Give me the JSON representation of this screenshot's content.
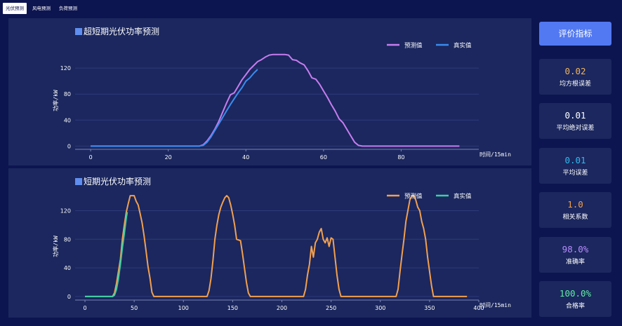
{
  "tabs": [
    {
      "label": "光伏预测",
      "active": true
    },
    {
      "label": "风电预测",
      "active": false
    },
    {
      "label": "负荷预测",
      "active": false
    }
  ],
  "charts": {
    "ultra_short": {
      "title": "超短期光伏功率预测",
      "xunit": "时间/15min",
      "yunit": "功率/kW",
      "legend": [
        "预测值",
        "真实值"
      ]
    },
    "short": {
      "title": "短期光伏功率预测",
      "xunit": "时间/15min",
      "yunit": "功率/kW",
      "legend": [
        "预测值",
        "真实值"
      ]
    }
  },
  "eval_button": "评价指标",
  "metrics": [
    {
      "value": "0.02",
      "label": "均方根误差",
      "color": "#f2b45a"
    },
    {
      "value": "0.01",
      "label": "平均绝对误差",
      "color": "#ffffff"
    },
    {
      "value": "0.01",
      "label": "平均误差",
      "color": "#34b8f0"
    },
    {
      "value": "1.0",
      "label": "相关系数",
      "color": "#f2a04a"
    },
    {
      "value": "98.0%",
      "label": "准确率",
      "color": "#b98cff"
    },
    {
      "value": "100.0%",
      "label": "合格率",
      "color": "#5ef0a0"
    }
  ],
  "chart_data": [
    {
      "type": "line",
      "title": "超短期光伏功率预测",
      "xlabel": "时间/15min",
      "ylabel": "功率/kW",
      "xlim": [
        -4,
        100
      ],
      "ylim": [
        -5,
        145
      ],
      "xticks": [
        0,
        20,
        40,
        60,
        80
      ],
      "yticks": [
        0,
        40,
        80,
        120
      ],
      "legend": "top-right",
      "grid": true,
      "series": [
        {
          "name": "预测值",
          "color": "#c77cf0",
          "points": [
            [
              0,
              0
            ],
            [
              28,
              0
            ],
            [
              29,
              2
            ],
            [
              30,
              8
            ],
            [
              31,
              16
            ],
            [
              32,
              26
            ],
            [
              33,
              38
            ],
            [
              34,
              52
            ],
            [
              35,
              66
            ],
            [
              36,
              79
            ],
            [
              37,
              82
            ],
            [
              38,
              92
            ],
            [
              39,
              102
            ],
            [
              40,
              110
            ],
            [
              41,
              118
            ],
            [
              42,
              124
            ],
            [
              43,
              130
            ],
            [
              44,
              133
            ],
            [
              45,
              137
            ],
            [
              46,
              140
            ],
            [
              47,
              141
            ],
            [
              48,
              141
            ],
            [
              49,
              141
            ],
            [
              50,
              141
            ],
            [
              51,
              140
            ],
            [
              52,
              133
            ],
            [
              53,
              132
            ],
            [
              54,
              128
            ],
            [
              55,
              125
            ],
            [
              56,
              116
            ],
            [
              57,
              105
            ],
            [
              58,
              103
            ],
            [
              59,
              95
            ],
            [
              60,
              85
            ],
            [
              61,
              75
            ],
            [
              62,
              64
            ],
            [
              63,
              54
            ],
            [
              64,
              42
            ],
            [
              65,
              36
            ],
            [
              66,
              26
            ],
            [
              67,
              16
            ],
            [
              68,
              6
            ],
            [
              69,
              1
            ],
            [
              70,
              0
            ],
            [
              95,
              0
            ]
          ]
        },
        {
          "name": "真实值",
          "color": "#3a8cf0",
          "points": [
            [
              0,
              0
            ],
            [
              28,
              0
            ],
            [
              29,
              1
            ],
            [
              30,
              6
            ],
            [
              31,
              14
            ],
            [
              32,
              24
            ],
            [
              33,
              34
            ],
            [
              34,
              44
            ],
            [
              35,
              54
            ],
            [
              36,
              64
            ],
            [
              37,
              73
            ],
            [
              38,
              82
            ],
            [
              39,
              90
            ],
            [
              40,
              100
            ],
            [
              41,
              105
            ],
            [
              42,
              112
            ],
            [
              43,
              118
            ]
          ]
        }
      ]
    },
    {
      "type": "line",
      "title": "短期光伏功率预测",
      "xlabel": "时间/15min",
      "ylabel": "功率/kW",
      "xlim": [
        -10,
        400
      ],
      "ylim": [
        -5,
        145
      ],
      "xticks": [
        0,
        50,
        100,
        150,
        200,
        250,
        300,
        350,
        400
      ],
      "yticks": [
        0,
        40,
        80,
        120
      ],
      "legend": "top-right",
      "grid": true,
      "series": [
        {
          "name": "预测值",
          "color": "#f2a050",
          "points": [
            [
              0,
              0
            ],
            [
              28,
              0
            ],
            [
              30,
              5
            ],
            [
              32,
              18
            ],
            [
              34,
              35
            ],
            [
              36,
              52
            ],
            [
              38,
              80
            ],
            [
              40,
              100
            ],
            [
              42,
              118
            ],
            [
              44,
              130
            ],
            [
              46,
              141
            ],
            [
              50,
              141
            ],
            [
              52,
              133
            ],
            [
              54,
              128
            ],
            [
              56,
              116
            ],
            [
              58,
              103
            ],
            [
              60,
              85
            ],
            [
              62,
              64
            ],
            [
              64,
              42
            ],
            [
              66,
              26
            ],
            [
              68,
              6
            ],
            [
              70,
              0
            ],
            [
              124,
              0
            ],
            [
              126,
              8
            ],
            [
              128,
              25
            ],
            [
              130,
              50
            ],
            [
              132,
              80
            ],
            [
              134,
              100
            ],
            [
              136,
              115
            ],
            [
              138,
              125
            ],
            [
              140,
              132
            ],
            [
              142,
              138
            ],
            [
              144,
              141
            ],
            [
              146,
              138
            ],
            [
              148,
              128
            ],
            [
              150,
              115
            ],
            [
              152,
              100
            ],
            [
              154,
              80
            ],
            [
              158,
              78
            ],
            [
              160,
              60
            ],
            [
              162,
              40
            ],
            [
              164,
              20
            ],
            [
              166,
              5
            ],
            [
              168,
              0
            ],
            [
              222,
              0
            ],
            [
              224,
              10
            ],
            [
              226,
              30
            ],
            [
              228,
              45
            ],
            [
              230,
              70
            ],
            [
              232,
              55
            ],
            [
              234,
              75
            ],
            [
              236,
              80
            ],
            [
              238,
              90
            ],
            [
              240,
              95
            ],
            [
              242,
              80
            ],
            [
              244,
              75
            ],
            [
              246,
              82
            ],
            [
              248,
              70
            ],
            [
              250,
              82
            ],
            [
              252,
              80
            ],
            [
              254,
              55
            ],
            [
              256,
              30
            ],
            [
              258,
              10
            ],
            [
              260,
              0
            ],
            [
              316,
              0
            ],
            [
              318,
              10
            ],
            [
              320,
              35
            ],
            [
              322,
              58
            ],
            [
              324,
              80
            ],
            [
              326,
              105
            ],
            [
              328,
              120
            ],
            [
              330,
              135
            ],
            [
              332,
              141
            ],
            [
              334,
              141
            ],
            [
              336,
              135
            ],
            [
              338,
              125
            ],
            [
              340,
              120
            ],
            [
              342,
              105
            ],
            [
              344,
              95
            ],
            [
              346,
              80
            ],
            [
              348,
              55
            ],
            [
              350,
              35
            ],
            [
              352,
              15
            ],
            [
              354,
              0
            ],
            [
              388,
              0
            ]
          ]
        },
        {
          "name": "真实值",
          "color": "#3dcfa5",
          "points": [
            [
              0,
              0
            ],
            [
              28,
              0
            ],
            [
              30,
              2
            ],
            [
              32,
              10
            ],
            [
              34,
              25
            ],
            [
              36,
              45
            ],
            [
              38,
              68
            ],
            [
              40,
              88
            ],
            [
              42,
              110
            ],
            [
              43,
              118
            ]
          ]
        }
      ]
    }
  ]
}
